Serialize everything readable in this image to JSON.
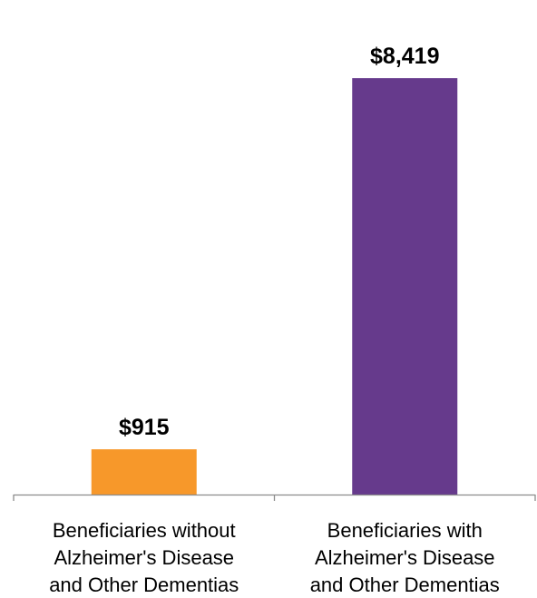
{
  "chart_data": {
    "type": "bar",
    "categories": [
      [
        "Beneficiaries without",
        "Alzheimer's Disease",
        "and Other Dementias"
      ],
      [
        "Beneficiaries with",
        "Alzheimer's Disease",
        "and Other Dementias"
      ]
    ],
    "values": [
      915,
      8419
    ],
    "data_labels": [
      "$915",
      "$8,419"
    ],
    "bar_colors": [
      "#f7982a",
      "#663a8c"
    ],
    "axis_color": "#8c8c8c",
    "ylim": [
      0,
      9000
    ],
    "grid": false,
    "legend": "none"
  }
}
